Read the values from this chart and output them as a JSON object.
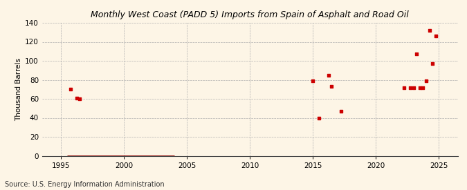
{
  "title": "Monthly West Coast (PADD 5) Imports from Spain of Asphalt and Road Oil",
  "ylabel": "Thousand Barrels",
  "source": "Source: U.S. Energy Information Administration",
  "background_color": "#fdf5e6",
  "scatter_color": "#cc0000",
  "line_color": "#8b0000",
  "xlim": [
    1993.5,
    2026.5
  ],
  "ylim": [
    0,
    140
  ],
  "yticks": [
    0,
    20,
    40,
    60,
    80,
    100,
    120,
    140
  ],
  "xticks": [
    1995,
    2000,
    2005,
    2010,
    2015,
    2020,
    2025
  ],
  "scatter_points": [
    [
      1995.75,
      70
    ],
    [
      1996.25,
      61
    ],
    [
      1996.5,
      60
    ],
    [
      2015.0,
      79
    ],
    [
      2015.5,
      40
    ],
    [
      2016.25,
      85
    ],
    [
      2016.5,
      73
    ],
    [
      2017.25,
      47
    ],
    [
      2022.25,
      72
    ],
    [
      2022.75,
      72
    ],
    [
      2023.0,
      72
    ],
    [
      2023.25,
      107
    ],
    [
      2023.5,
      72
    ],
    [
      2023.75,
      72
    ],
    [
      2024.0,
      79
    ],
    [
      2024.25,
      132
    ],
    [
      2024.5,
      97
    ],
    [
      2024.75,
      126
    ]
  ],
  "line_points_x": [
    1995.5,
    2004.0
  ],
  "line_points_y": [
    0,
    0
  ]
}
